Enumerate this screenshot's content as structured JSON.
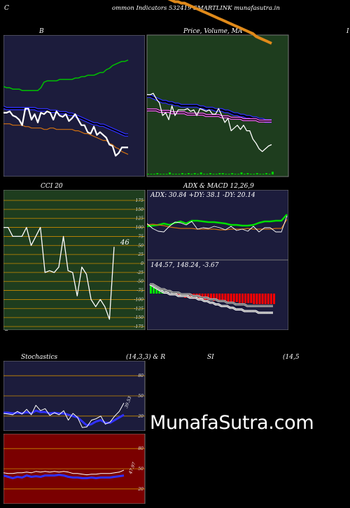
{
  "header": {
    "left_letter": "C",
    "title": "ommon  Indicators 532419 SMARTLINK munafasutra.in"
  },
  "panels": {
    "bb": {
      "label": "B"
    },
    "price": {
      "label": "Price,  Volume,  MA",
      "right_edge": "I"
    },
    "cci": {
      "label": "CCI 20",
      "value_label": "46",
      "bottom_left": "C"
    },
    "adx": {
      "label": "ADX  & MACD 12,26,9",
      "adx_text": "ADX: 30.84   +DY: 38.1 -DY: 20.14",
      "macd_text": "144.57,  148.24,  -3.67"
    },
    "stoch": {
      "label": "Stochastics",
      "params": "(14,3,3) & R",
      "value_label": "39.53"
    },
    "rsi": {
      "label": "SI",
      "params": "(14,5",
      "value_label": "47.97"
    }
  },
  "watermark": "MunafaSutra.com",
  "colors": {
    "panel_navy": "#1c1c3c",
    "panel_green": "#1e3d1e",
    "panel_maroon": "#7a0000",
    "orange_line": "#e08a1a",
    "blue_line": "#1f1fff",
    "green_line": "#00cc00",
    "white_line": "#ffffff"
  },
  "chart_data": [
    {
      "type": "line",
      "name": "bollinger",
      "series": [
        {
          "color": "#00c000",
          "values": [
            64,
            63,
            63,
            62,
            62,
            62,
            61,
            61,
            61,
            61,
            61,
            61,
            63,
            67,
            68,
            68,
            68,
            68,
            69,
            69,
            69,
            69,
            69,
            70,
            70,
            71,
            71,
            72,
            72,
            72,
            73,
            74,
            74,
            76,
            77,
            79,
            80,
            81,
            82,
            82,
            83
          ]
        },
        {
          "color": "#3030ff",
          "values": [
            49,
            48,
            48,
            48,
            48,
            48,
            48,
            48,
            48,
            48,
            48,
            47,
            47,
            47,
            47,
            46,
            46,
            46,
            45,
            45,
            45,
            44,
            44,
            43,
            42,
            41,
            40,
            39,
            38,
            37,
            37,
            36,
            36,
            35,
            34,
            33,
            32,
            31,
            30,
            29,
            29
          ]
        },
        {
          "color": "#d07010",
          "values": [
            37,
            37,
            37,
            36,
            36,
            36,
            36,
            35,
            35,
            34,
            34,
            34,
            34,
            33,
            33,
            34,
            34,
            33,
            33,
            33,
            33,
            33,
            33,
            32,
            32,
            31,
            30,
            30,
            29,
            28,
            27,
            26,
            25,
            25,
            23,
            22,
            20,
            19,
            17,
            16,
            15
          ]
        },
        {
          "color": "#ffffff",
          "values": [
            45,
            45,
            46,
            43,
            42,
            40,
            36,
            48,
            48,
            40,
            44,
            38,
            45,
            44,
            46,
            45,
            40,
            46,
            43,
            42,
            44,
            39,
            41,
            44,
            40,
            36,
            36,
            31,
            30,
            35,
            29,
            31,
            29,
            27,
            22,
            21,
            14,
            16,
            20,
            20,
            20
          ]
        }
      ]
    },
    {
      "type": "line",
      "name": "price_ma",
      "series": [
        {
          "color": "#e08a1a",
          "values": [
            131,
            131,
            131,
            130,
            129,
            128,
            128,
            127,
            126,
            125,
            125,
            124,
            124,
            123,
            122,
            121,
            120,
            119,
            118,
            117,
            116,
            115,
            114,
            113,
            112,
            111,
            110,
            109,
            108,
            107,
            106,
            105,
            104,
            103,
            102,
            100,
            99,
            98,
            97,
            96,
            95
          ]
        },
        {
          "color": "#3030ff",
          "values": [
            57,
            57,
            56,
            55,
            54,
            53,
            53,
            52,
            52,
            51,
            51,
            50,
            50,
            50,
            50,
            50,
            50,
            49,
            49,
            48,
            48,
            48,
            47,
            47,
            47,
            46,
            46,
            45,
            44,
            44,
            43,
            43,
            42,
            42,
            41,
            41,
            40,
            40,
            39,
            39,
            39
          ]
        },
        {
          "color": "#ff66ff",
          "values": [
            47,
            47,
            47,
            47,
            46,
            46,
            46,
            46,
            45,
            45,
            45,
            45,
            45,
            44,
            44,
            44,
            44,
            44,
            44,
            43,
            43,
            43,
            43,
            43,
            42,
            42,
            42,
            41,
            41,
            41,
            41,
            40,
            40,
            40,
            40,
            40,
            39,
            39,
            39,
            39,
            39
          ]
        },
        {
          "color": "#ffffff",
          "values": [
            58,
            58,
            59,
            55,
            52,
            43,
            45,
            40,
            50,
            43,
            47,
            47,
            47,
            48,
            46,
            47,
            43,
            48,
            47,
            46,
            47,
            44,
            44,
            48,
            43,
            38,
            41,
            32,
            34,
            36,
            33,
            36,
            32,
            32,
            26,
            23,
            19,
            17,
            19,
            21,
            22
          ]
        }
      ],
      "volume": [
        0,
        0,
        0,
        1,
        0,
        0,
        0,
        2,
        0,
        0,
        0,
        1,
        0,
        1,
        0,
        1,
        0,
        2,
        0,
        0,
        1,
        0,
        0,
        1,
        1,
        0,
        0,
        1,
        0,
        0,
        2,
        0,
        1,
        0,
        0,
        1,
        0,
        0,
        1,
        0,
        3
      ]
    },
    {
      "type": "line",
      "name": "cci",
      "ylim": [
        -175,
        175
      ],
      "ticks": [
        175,
        150,
        125,
        100,
        75,
        50,
        25,
        0,
        -25,
        -50,
        -75,
        -100,
        -125,
        -150,
        -175
      ],
      "series": [
        {
          "color": "#ffffff",
          "values": [
            100,
            100,
            75,
            75,
            75,
            100,
            50,
            75,
            100,
            -25,
            -20,
            -25,
            -10,
            75,
            -20,
            -25,
            -90,
            -10,
            -30,
            -100,
            -120,
            -100,
            -120,
            -155,
            46
          ]
        }
      ]
    },
    {
      "type": "line",
      "name": "adx",
      "series": [
        {
          "color": "#00dd00",
          "values": [
            48,
            49,
            50,
            52,
            50,
            53,
            55,
            52,
            56,
            56,
            55,
            54,
            54,
            53,
            52,
            50,
            50,
            49,
            49,
            50,
            53,
            55,
            55,
            56,
            56,
            65
          ]
        },
        {
          "color": "#d07010",
          "values": [
            50,
            51,
            50,
            49,
            47,
            46,
            45,
            45,
            45,
            44,
            44,
            44,
            44,
            43,
            43,
            44,
            44,
            44,
            45,
            44,
            44,
            44,
            44,
            45,
            45,
            58
          ]
        },
        {
          "color": "#ffffff",
          "values": [
            52,
            45,
            41,
            40,
            48,
            54,
            53,
            50,
            55,
            44,
            46,
            45,
            48,
            46,
            43,
            48,
            42,
            44,
            41,
            48,
            40,
            46,
            46,
            40,
            40,
            63
          ]
        }
      ]
    },
    {
      "type": "bar",
      "name": "macd",
      "histogram": [
        9,
        7,
        6,
        4,
        3,
        2,
        1,
        0,
        -1,
        -2,
        -3,
        -3,
        -4,
        -4,
        -4,
        -5,
        -5,
        -5,
        -6,
        -6,
        -6,
        -6,
        -7,
        -7,
        -7,
        -7,
        -7,
        -8,
        -8,
        -8,
        -8,
        -9,
        -9,
        -9,
        -9,
        -9,
        -10,
        -10,
        -10,
        -10,
        -10,
        -10,
        -10,
        -10
      ],
      "series": [
        {
          "color": "#ffffff",
          "values": [
            161,
            160,
            159,
            158,
            157,
            156,
            156,
            155,
            155,
            155,
            154,
            154,
            154,
            154,
            153,
            153,
            153,
            152,
            152,
            151,
            151,
            150,
            150,
            149,
            149,
            148,
            148,
            148,
            147,
            147,
            146,
            146,
            146,
            145,
            145,
            145,
            145,
            145,
            144,
            144,
            144,
            144,
            144,
            144
          ]
        },
        {
          "color": "#bbbbbb",
          "values": [
            161,
            161,
            160,
            159,
            158,
            158,
            157,
            157,
            156,
            156,
            156,
            155,
            155,
            155,
            155,
            154,
            154,
            154,
            153,
            153,
            153,
            152,
            152,
            152,
            151,
            151,
            151,
            150,
            150,
            150,
            149,
            149,
            149,
            149,
            148,
            148,
            148,
            148,
            148,
            148,
            148,
            148,
            148,
            148
          ]
        }
      ]
    },
    {
      "type": "line",
      "name": "stochastics",
      "ylim": [
        0,
        100
      ],
      "ticks": [
        80,
        50,
        20
      ],
      "series": [
        {
          "color": "#3030ff",
          "values": [
            25,
            25,
            24,
            25,
            24,
            26,
            24,
            28,
            26,
            26,
            24,
            25,
            24,
            24,
            22,
            20,
            18,
            12,
            6,
            8,
            12,
            14,
            10,
            10,
            14,
            18,
            22
          ]
        },
        {
          "color": "#ffffff",
          "values": [
            24,
            23,
            22,
            27,
            23,
            30,
            22,
            36,
            28,
            31,
            21,
            25,
            22,
            28,
            14,
            24,
            18,
            3,
            4,
            14,
            16,
            20,
            8,
            11,
            20,
            27,
            39.53
          ]
        }
      ]
    },
    {
      "type": "line",
      "name": "rsi",
      "ylim": [
        0,
        100
      ],
      "ticks": [
        80,
        50,
        20
      ],
      "series": [
        {
          "color": "#3030ff",
          "values": [
            40,
            38,
            36,
            38,
            37,
            40,
            38,
            39,
            38,
            40,
            40,
            40,
            41,
            40,
            38,
            37,
            37,
            36,
            36,
            37,
            36,
            37,
            37,
            37,
            38,
            39,
            40
          ]
        },
        {
          "color": "#ffffff",
          "values": [
            44,
            43,
            43,
            44,
            44,
            45,
            44,
            46,
            45,
            46,
            45,
            46,
            45,
            46,
            45,
            43,
            43,
            42,
            41,
            42,
            42,
            43,
            43,
            43,
            44,
            45,
            47.97
          ]
        }
      ]
    }
  ]
}
